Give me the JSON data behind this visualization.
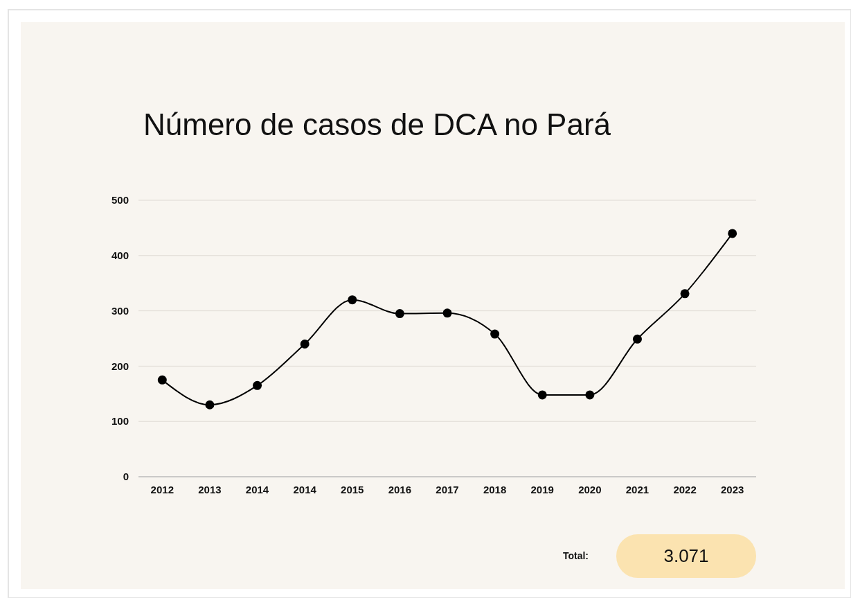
{
  "chart_data": {
    "type": "line",
    "title": "Número de casos de DCA no Pará",
    "categories": [
      "2012",
      "2013",
      "2014",
      "2014",
      "2015",
      "2016",
      "2017",
      "2018",
      "2019",
      "2020",
      "2021",
      "2022",
      "2023"
    ],
    "series": [
      {
        "color": "#000000",
        "values": [
          175,
          130,
          165,
          240,
          320,
          295,
          296,
          258,
          148,
          148,
          249,
          331,
          440
        ]
      }
    ],
    "ylim": [
      0,
      500
    ],
    "yticks": [
      0,
      100,
      200,
      300,
      400,
      500
    ],
    "grid": "y",
    "marker": "circle",
    "line_style": "solid",
    "annotations": [
      "Total:",
      "3.071"
    ]
  }
}
